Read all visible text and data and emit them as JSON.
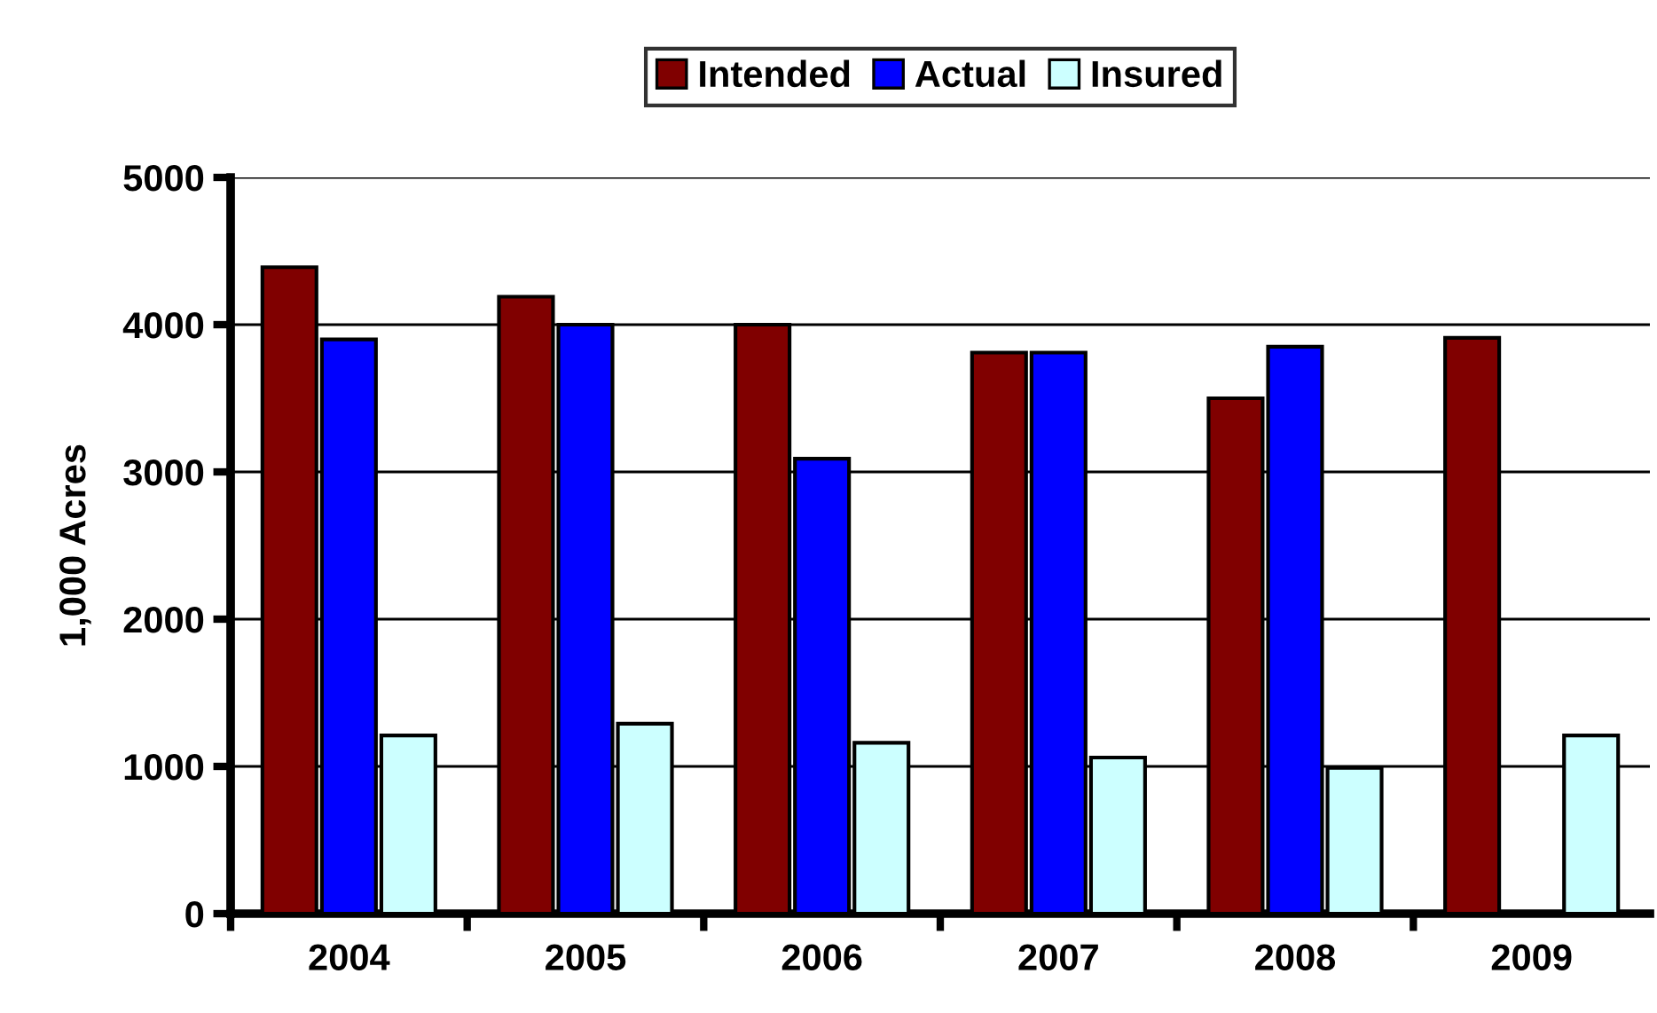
{
  "chart_data": {
    "type": "bar",
    "ylabel": "1,000 Acres",
    "categories": [
      "2004",
      "2005",
      "2006",
      "2007",
      "2008",
      "2009"
    ],
    "series": [
      {
        "name": "Intended",
        "color": "#800000",
        "values": [
          4390,
          4190,
          4000,
          3810,
          3500,
          3910
        ]
      },
      {
        "name": "Actual",
        "color": "#0000ff",
        "values": [
          3900,
          4000,
          3090,
          3810,
          3850,
          null
        ]
      },
      {
        "name": "Insured",
        "color": "#ccffff",
        "values": [
          1210,
          1290,
          1160,
          1060,
          990,
          1210
        ]
      }
    ],
    "ylim": [
      0,
      5000
    ],
    "yticks": [
      0,
      1000,
      2000,
      3000,
      4000,
      5000
    ],
    "grid": "y",
    "legend": "top"
  }
}
